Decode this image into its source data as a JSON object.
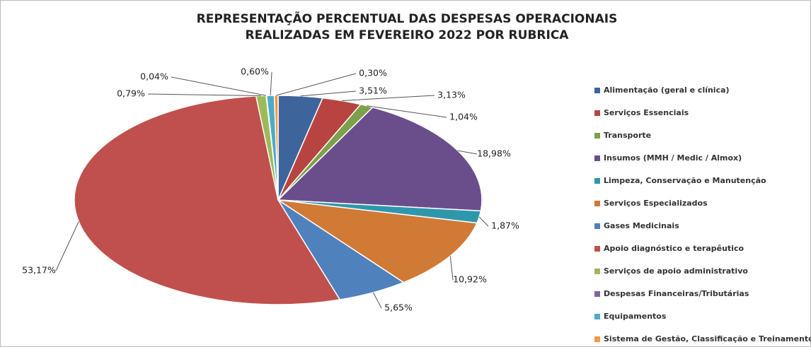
{
  "chart_data": {
    "type": "pie",
    "title": [
      "REPRESENTAÇÃO PERCENTUAL DAS DESPESAS OPERACIONAIS",
      "REALIZADAS EM FEVEREIRO 2022 POR RUBRICA"
    ],
    "categories": [
      "Alimentação (geral e clínica)",
      "Serviços Essenciais",
      "Transporte",
      "Insumos (MMH / Medic / Almox)",
      "Limpeza, Conservação e Manutenção",
      "Serviços Especializados",
      "Gases Medicinais",
      "Apoio diagnóstico e terapêutico",
      "Serviços de apoio administrativo",
      "Despesas Financeiras/Tributárias",
      "Equipamentos",
      "Sistema de Gestão, Classificação e Treinamento"
    ],
    "values": [
      3.51,
      3.13,
      1.04,
      18.98,
      1.87,
      10.92,
      5.65,
      53.17,
      0.79,
      0.04,
      0.6,
      0.3
    ],
    "value_labels": [
      "3,51%",
      "3,13%",
      "1,04%",
      "18,98%",
      "1,87%",
      "10,92%",
      "5,65%",
      "53,17%",
      "0,79%",
      "0,04%",
      "0,60%",
      "0,30%"
    ],
    "colors": [
      "#3d659b",
      "#b84442",
      "#7da04a",
      "#6a4e8c",
      "#2f97ac",
      "#d07a36",
      "#4f81bd",
      "#c0504d",
      "#9bbb59",
      "#8064a2",
      "#4bacc6",
      "#f79646"
    ],
    "legend": "right"
  }
}
